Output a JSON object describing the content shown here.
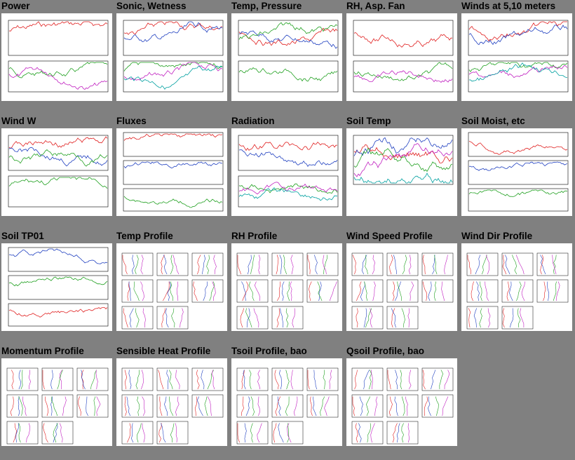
{
  "tiles": [
    {
      "title": "Power",
      "kind": "ts2"
    },
    {
      "title": "Sonic, Wetness",
      "kind": "ts2"
    },
    {
      "title": "Temp, Pressure",
      "kind": "ts2"
    },
    {
      "title": "RH, Asp. Fan",
      "kind": "ts2"
    },
    {
      "title": "Winds at 5,10 meters",
      "kind": "ts2"
    },
    {
      "title": "Wind W",
      "kind": "ts2"
    },
    {
      "title": "Fluxes",
      "kind": "ts3"
    },
    {
      "title": "Radiation",
      "kind": "ts2"
    },
    {
      "title": "Soil Temp",
      "kind": "ts1"
    },
    {
      "title": "Soil Moist, etc",
      "kind": "ts3"
    },
    {
      "title": "Soil TP01",
      "kind": "ts3"
    },
    {
      "title": "Temp Profile",
      "kind": "grid"
    },
    {
      "title": "RH Profile",
      "kind": "grid"
    },
    {
      "title": "Wind Speed Profile",
      "kind": "grid"
    },
    {
      "title": "Wind Dir Profile",
      "kind": "grid"
    },
    {
      "title": "Momentum Profile",
      "kind": "grid"
    },
    {
      "title": "Sensible Heat Profile",
      "kind": "grid"
    },
    {
      "title": "Tsoil Profile, bao",
      "kind": "grid"
    },
    {
      "title": "Qsoil Profile, bao",
      "kind": "grid"
    }
  ]
}
